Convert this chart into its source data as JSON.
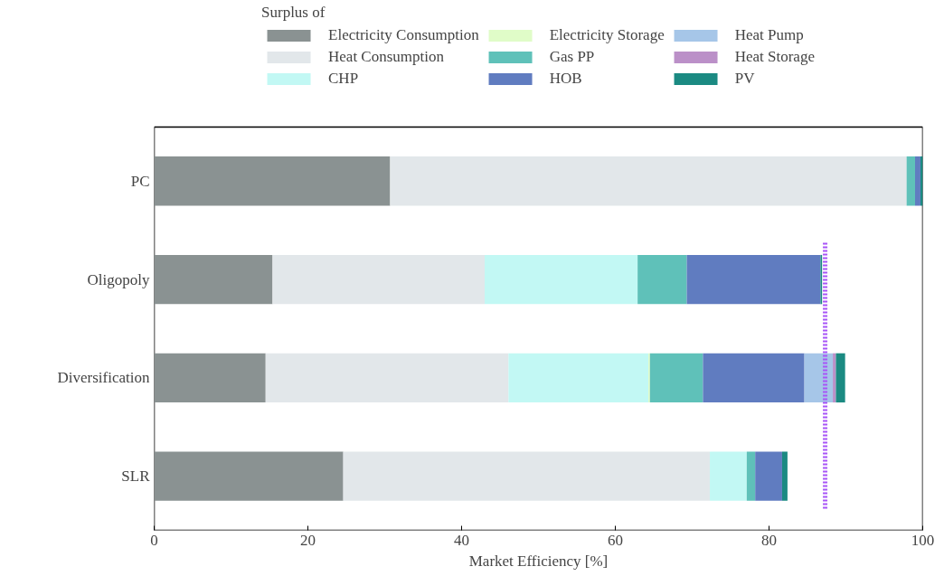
{
  "chart_data": {
    "type": "bar",
    "orientation": "horizontal",
    "stacked": true,
    "xlabel": "Market Efficiency [%]",
    "legend_title": "Surplus of",
    "legend": "top",
    "categories": [
      "PC",
      "Oligopoly",
      "Diversification",
      "SLR"
    ],
    "series": [
      {
        "name": "Electricity Consumption",
        "color": "#8a9292",
        "values": [
          30.7,
          15.4,
          14.5,
          24.6
        ]
      },
      {
        "name": "Heat Consumption",
        "color": "#e2e7ea",
        "values": [
          67.2,
          27.6,
          31.6,
          47.7
        ]
      },
      {
        "name": "CHP",
        "color": "#c2f8f4",
        "values": [
          0,
          19.9,
          18.2,
          4.8
        ]
      },
      {
        "name": "Electricity Storage",
        "color": "#e0fcc8",
        "values": [
          0,
          0,
          0.2,
          0
        ]
      },
      {
        "name": "Gas PP",
        "color": "#5fc1b9",
        "values": [
          1.1,
          6.4,
          6.9,
          1.1
        ]
      },
      {
        "name": "HOB",
        "color": "#607cc0",
        "values": [
          0.7,
          17.4,
          13.2,
          3.5
        ]
      },
      {
        "name": "Heat Pump",
        "color": "#a6c6e8",
        "values": [
          0,
          0,
          3.7,
          0
        ]
      },
      {
        "name": "Heat Storage",
        "color": "#bb90c8",
        "values": [
          0,
          0,
          0.4,
          0
        ]
      },
      {
        "name": "PV",
        "color": "#1b8a82",
        "values": [
          0.3,
          0.2,
          1.2,
          0.7
        ]
      }
    ],
    "xlim": [
      0,
      100
    ],
    "xticks": [
      0,
      20,
      40,
      60,
      80,
      100
    ],
    "ref_lines": [
      {
        "axis": "x",
        "value": 87.3,
        "color": "#a855f7",
        "line_style": "dotted"
      }
    ]
  }
}
